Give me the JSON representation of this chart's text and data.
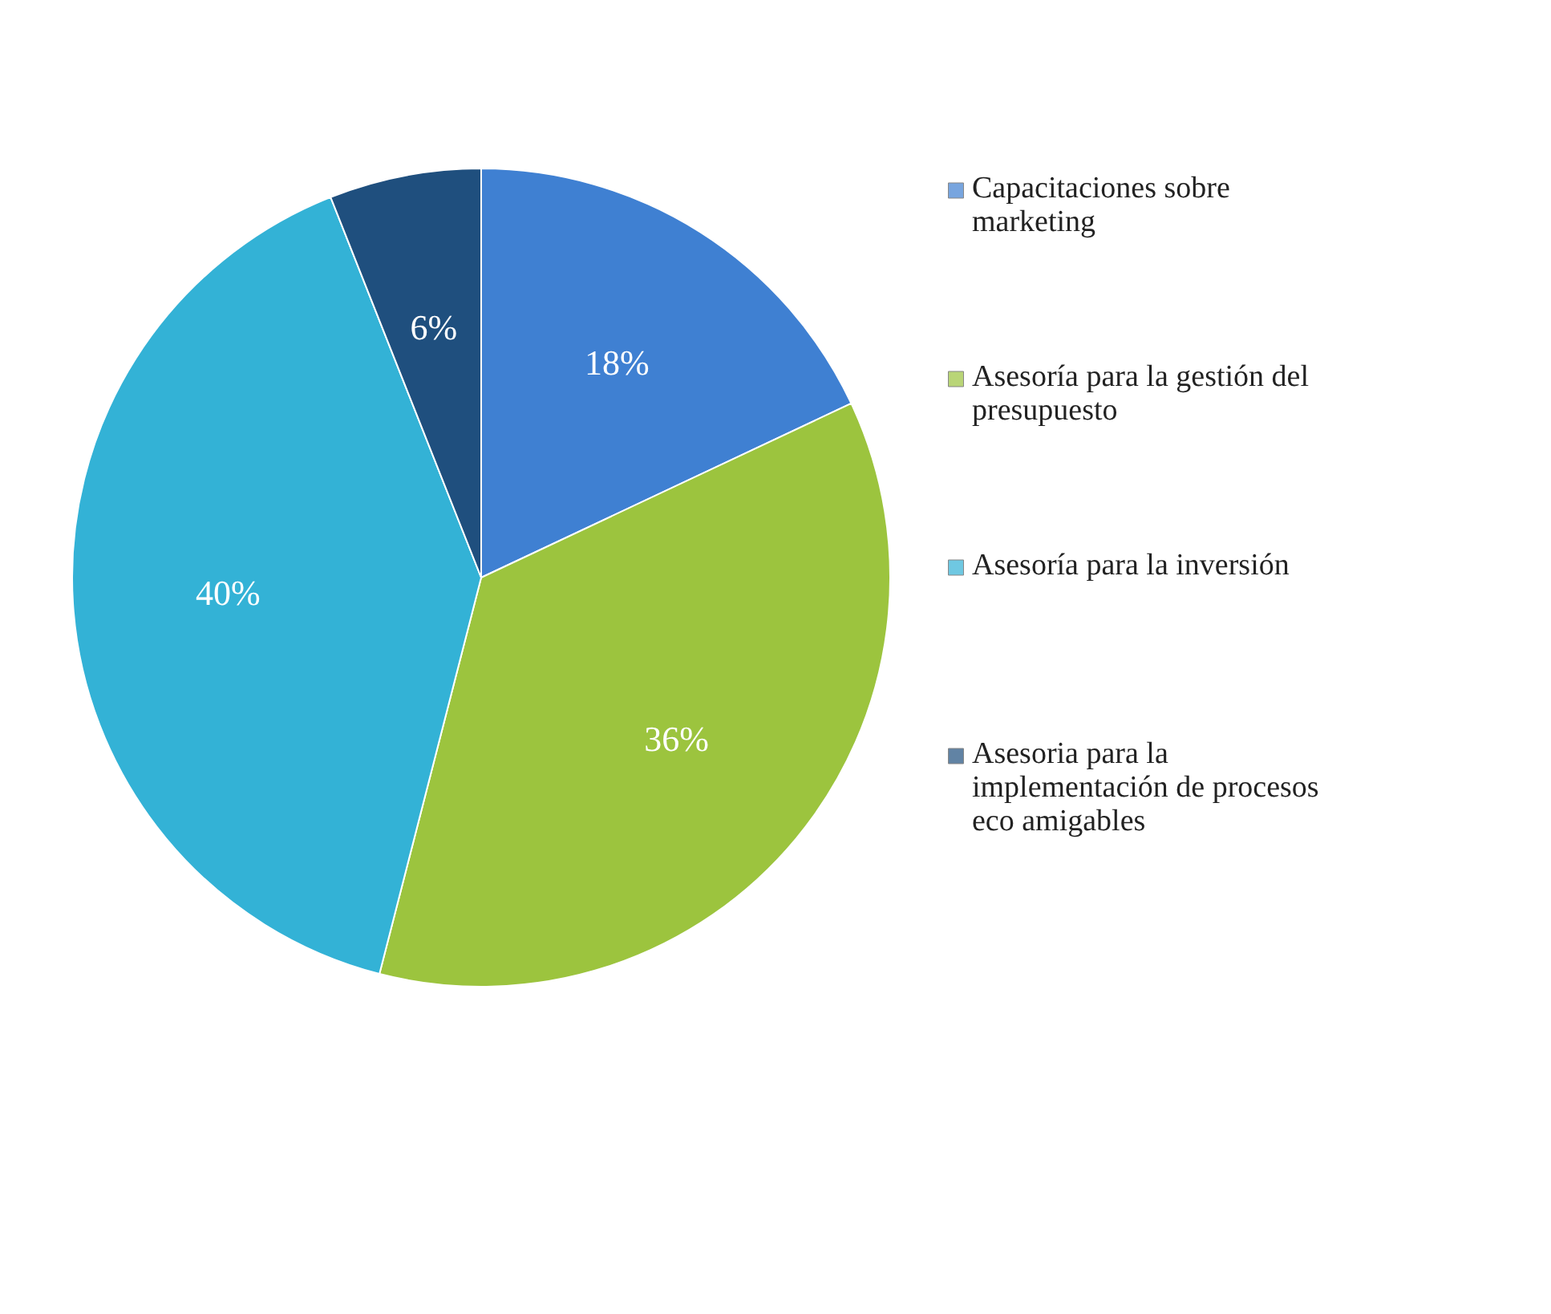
{
  "chart_data": {
    "type": "pie",
    "categories": [
      "Capacitaciones sobre marketing",
      "Asesoría para la gestión del presupuesto",
      "Asesoría para la inversión",
      "Asesoria para la implementación de procesos eco amigables"
    ],
    "values": [
      18,
      36,
      40,
      6
    ],
    "colors": [
      "#3f80d2",
      "#9cc43e",
      "#33b2d6",
      "#1f4f7e"
    ],
    "value_labels": [
      "18%",
      "36%",
      "40%",
      "6%"
    ],
    "legend": "right"
  }
}
